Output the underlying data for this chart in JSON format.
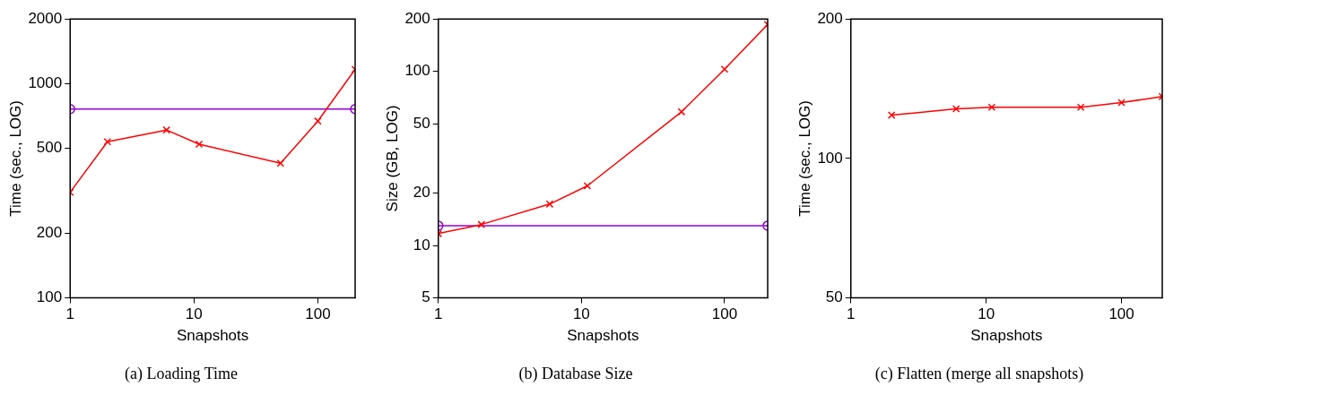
{
  "chart_data": [
    {
      "type": "line",
      "title": "(a) Loading Time",
      "xlabel": "Snapshots",
      "ylabel": "Time (sec., LOG)",
      "log": "xy",
      "grid": false,
      "legend": false,
      "xlim": [
        1,
        200
      ],
      "xticks": [
        1,
        10,
        100
      ],
      "ylim": [
        100,
        2000
      ],
      "yticks": [
        100,
        200,
        500,
        1000,
        2000
      ],
      "series": [
        {
          "color": "#ff0000",
          "marker": "cross",
          "x": [
            1,
            2,
            6,
            11,
            50,
            100,
            200
          ],
          "values": [
            311,
            535,
            607,
            521,
            425,
            668,
            1164
          ]
        },
        {
          "color": "#9400d3",
          "marker": "circle",
          "x": [
            1,
            200
          ],
          "values": [
            760,
            760
          ]
        }
      ]
    },
    {
      "type": "line",
      "title": "(b) Database Size",
      "xlabel": "Snapshots",
      "ylabel": "Size (GB, LOG)",
      "log": "xy",
      "grid": false,
      "legend": false,
      "xlim": [
        1,
        200
      ],
      "xticks": [
        1,
        10,
        100
      ],
      "ylim": [
        5,
        200
      ],
      "yticks": [
        5,
        10,
        20,
        50,
        100,
        200
      ],
      "series": [
        {
          "color": "#ff0000",
          "marker": "cross",
          "x": [
            1,
            2,
            6,
            11,
            50,
            100,
            200
          ],
          "values": [
            11.7,
            13.2,
            17.3,
            22,
            58.6,
            103,
            186
          ]
        },
        {
          "color": "#9400d3",
          "marker": "circle",
          "x": [
            1,
            200
          ],
          "values": [
            13,
            13
          ]
        }
      ]
    },
    {
      "type": "line",
      "title": "(c) Flatten (merge all snapshots)",
      "xlabel": "Snapshots",
      "ylabel": "Time (sec., LOG)",
      "log": "xy",
      "grid": false,
      "legend": false,
      "xlim": [
        1,
        200
      ],
      "xticks": [
        1,
        10,
        100
      ],
      "ylim": [
        50,
        200
      ],
      "yticks": [
        50,
        100,
        200
      ],
      "series": [
        {
          "color": "#ff0000",
          "marker": "cross",
          "x": [
            2,
            6,
            11,
            50,
            100,
            200
          ],
          "values": [
            124,
            128,
            129,
            129,
            132,
            136
          ]
        }
      ]
    }
  ]
}
